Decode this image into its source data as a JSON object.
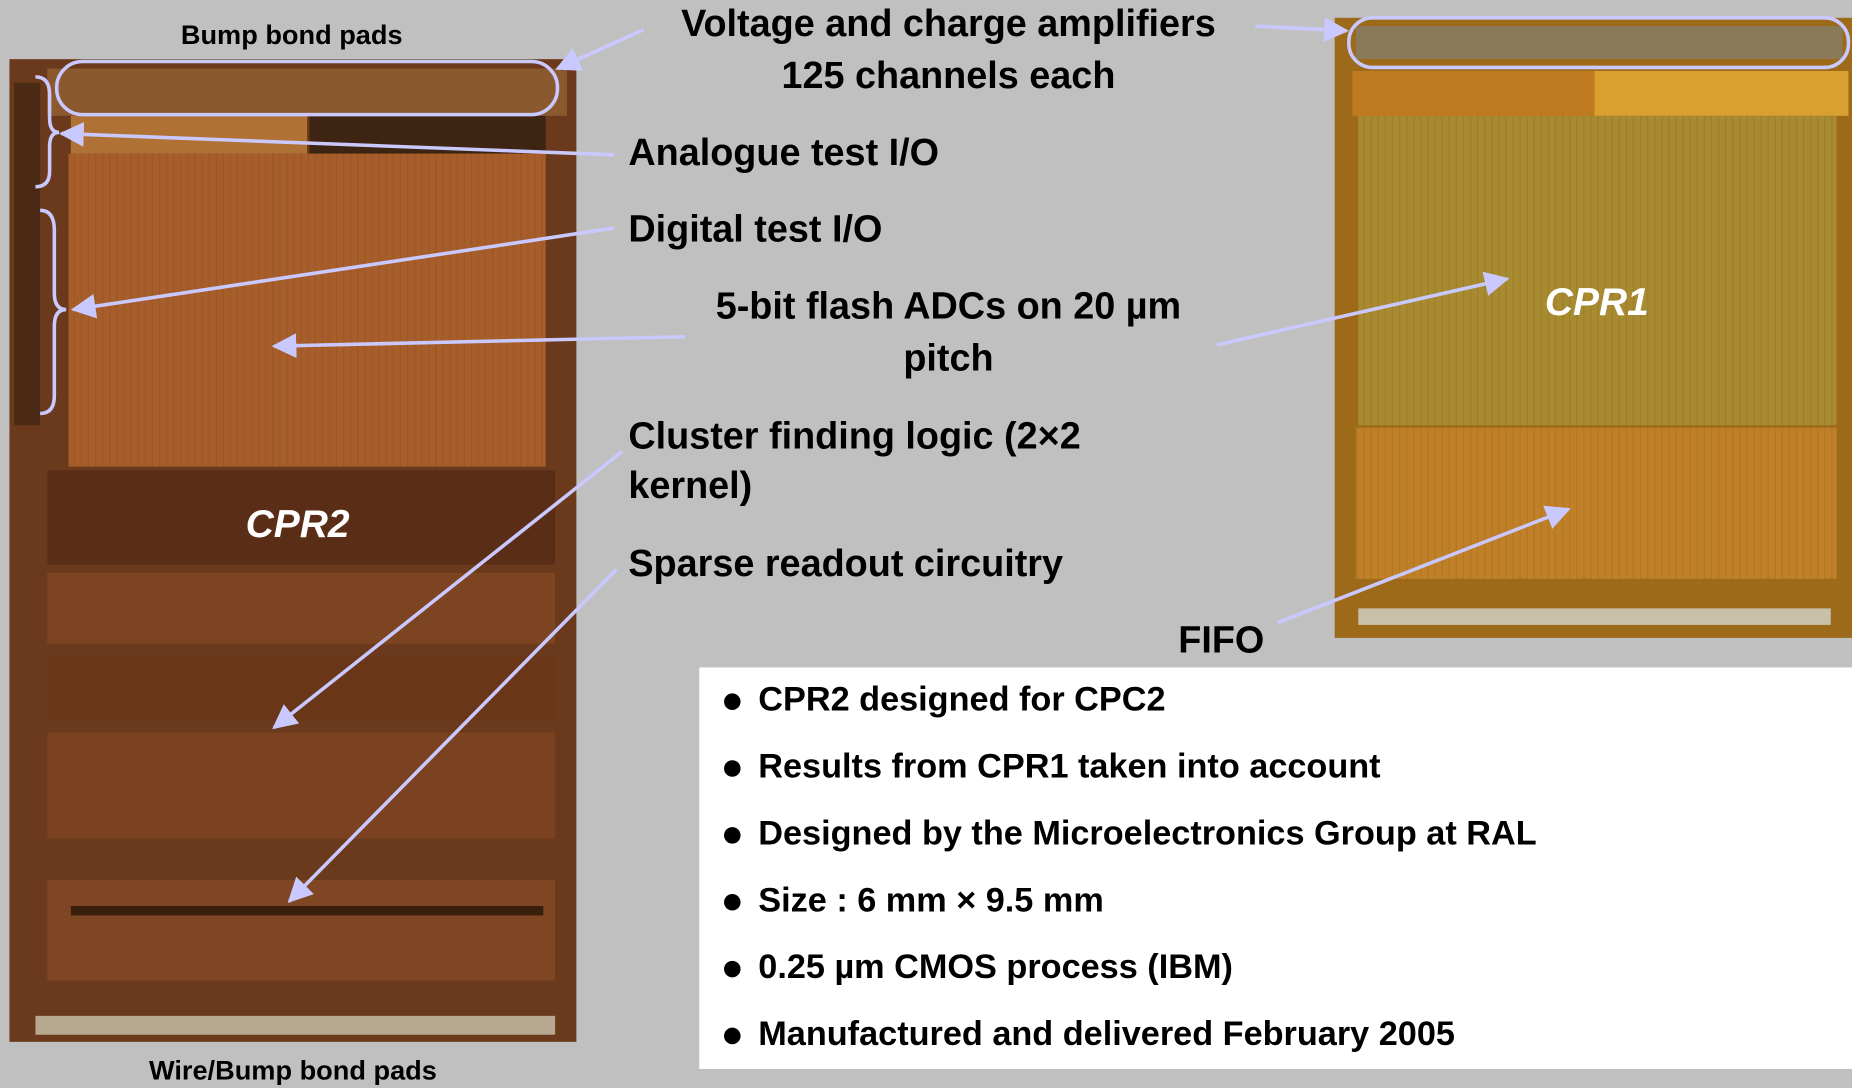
{
  "labels": {
    "bump_top": "Bump bond pads",
    "amplifiers": [
      "Voltage and charge amplifiers",
      "125 channels each"
    ],
    "analogue": "Analogue test I/O",
    "digital": "Digital test I/O",
    "adc": [
      "5-bit flash ADCs on 20 µm",
      "pitch"
    ],
    "cluster": [
      "Cluster finding logic (2×2",
      "kernel)"
    ],
    "sparse": "Sparse readout circuitry",
    "fifo": "FIFO",
    "bump_bottom": "Wire/Bump bond pads"
  },
  "chips": {
    "left": "CPR2",
    "right": "CPR1"
  },
  "bullets": [
    "CPR2 designed for CPC2",
    "Results from CPR1 taken into account",
    "Designed by the Microelectronics Group at RAL",
    "Size : 6 mm × 9.5 mm",
    "0.25 µm CMOS process (IBM)",
    "Manufactured and delivered February 2005"
  ]
}
